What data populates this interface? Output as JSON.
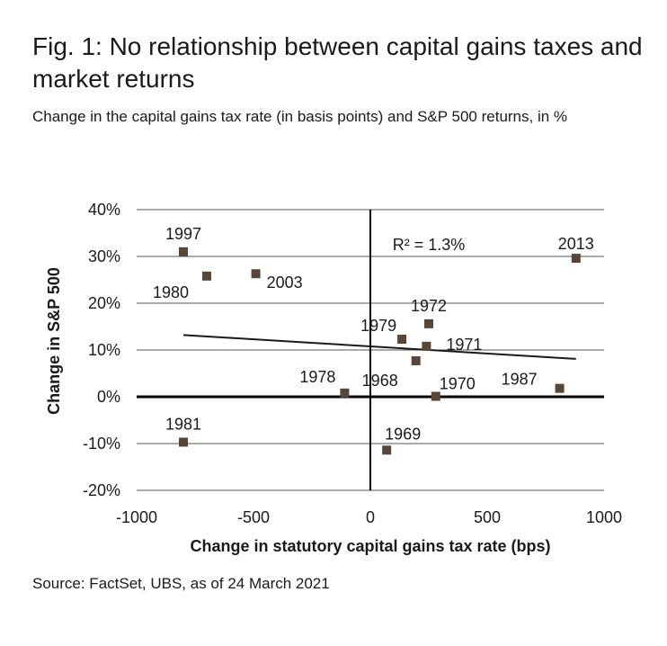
{
  "figure": {
    "title": "Fig. 1: No relationship between capital gains taxes and market returns",
    "subtitle": "Change in the capital gains tax rate (in basis points) and S&P 500 returns, in %",
    "source": "Source: FactSet, UBS, as of 24 March 2021"
  },
  "chart_data": {
    "type": "scatter",
    "title": "Fig. 1: No relationship between capital gains taxes and market returns",
    "subtitle": "Change in the capital gains tax rate (in basis points) and S&P 500 returns, in %",
    "xlabel": "Change in statutory capital gains tax rate (bps)",
    "ylabel": "Change in S&P 500",
    "xlim": [
      -1000,
      1000
    ],
    "ylim": [
      -20,
      40
    ],
    "xticks": [
      {
        "value": -1000,
        "label": "-1000"
      },
      {
        "value": -500,
        "label": "-500"
      },
      {
        "value": 0,
        "label": "0"
      },
      {
        "value": 500,
        "label": "500"
      },
      {
        "value": 1000,
        "label": "1000"
      }
    ],
    "yticks": [
      {
        "value": 40,
        "label": "40%"
      },
      {
        "value": 30,
        "label": "30%"
      },
      {
        "value": 20,
        "label": "20%"
      },
      {
        "value": 10,
        "label": "10%"
      },
      {
        "value": 0,
        "label": "0%"
      },
      {
        "value": -10,
        "label": "-10%"
      },
      {
        "value": -20,
        "label": "-20%"
      }
    ],
    "grid": "horizontal",
    "color": "#5a4637",
    "points": [
      {
        "label": "1997",
        "x": -800,
        "y": 31
      },
      {
        "label": "1980",
        "x": -700,
        "y": 25.8
      },
      {
        "label": "2003",
        "x": -490,
        "y": 26.3
      },
      {
        "label": "1972",
        "x": 250,
        "y": 15.6
      },
      {
        "label": "1979",
        "x": 135,
        "y": 12.3
      },
      {
        "label": "1971",
        "x": 240,
        "y": 10.8
      },
      {
        "label": "1968",
        "x": 195,
        "y": 7.7
      },
      {
        "label": "1978",
        "x": -110,
        "y": 0.8
      },
      {
        "label": "1970",
        "x": 280,
        "y": 0.1
      },
      {
        "label": "1987",
        "x": 810,
        "y": 1.8
      },
      {
        "label": "1981",
        "x": -800,
        "y": -9.7
      },
      {
        "label": "1969",
        "x": 70,
        "y": -11.4
      },
      {
        "label": "2013",
        "x": 880,
        "y": 29.6
      }
    ],
    "trendline": {
      "x": [
        -800,
        880
      ],
      "y": [
        13.2,
        8.1
      ]
    },
    "annotation": "R² = 1.3%"
  }
}
